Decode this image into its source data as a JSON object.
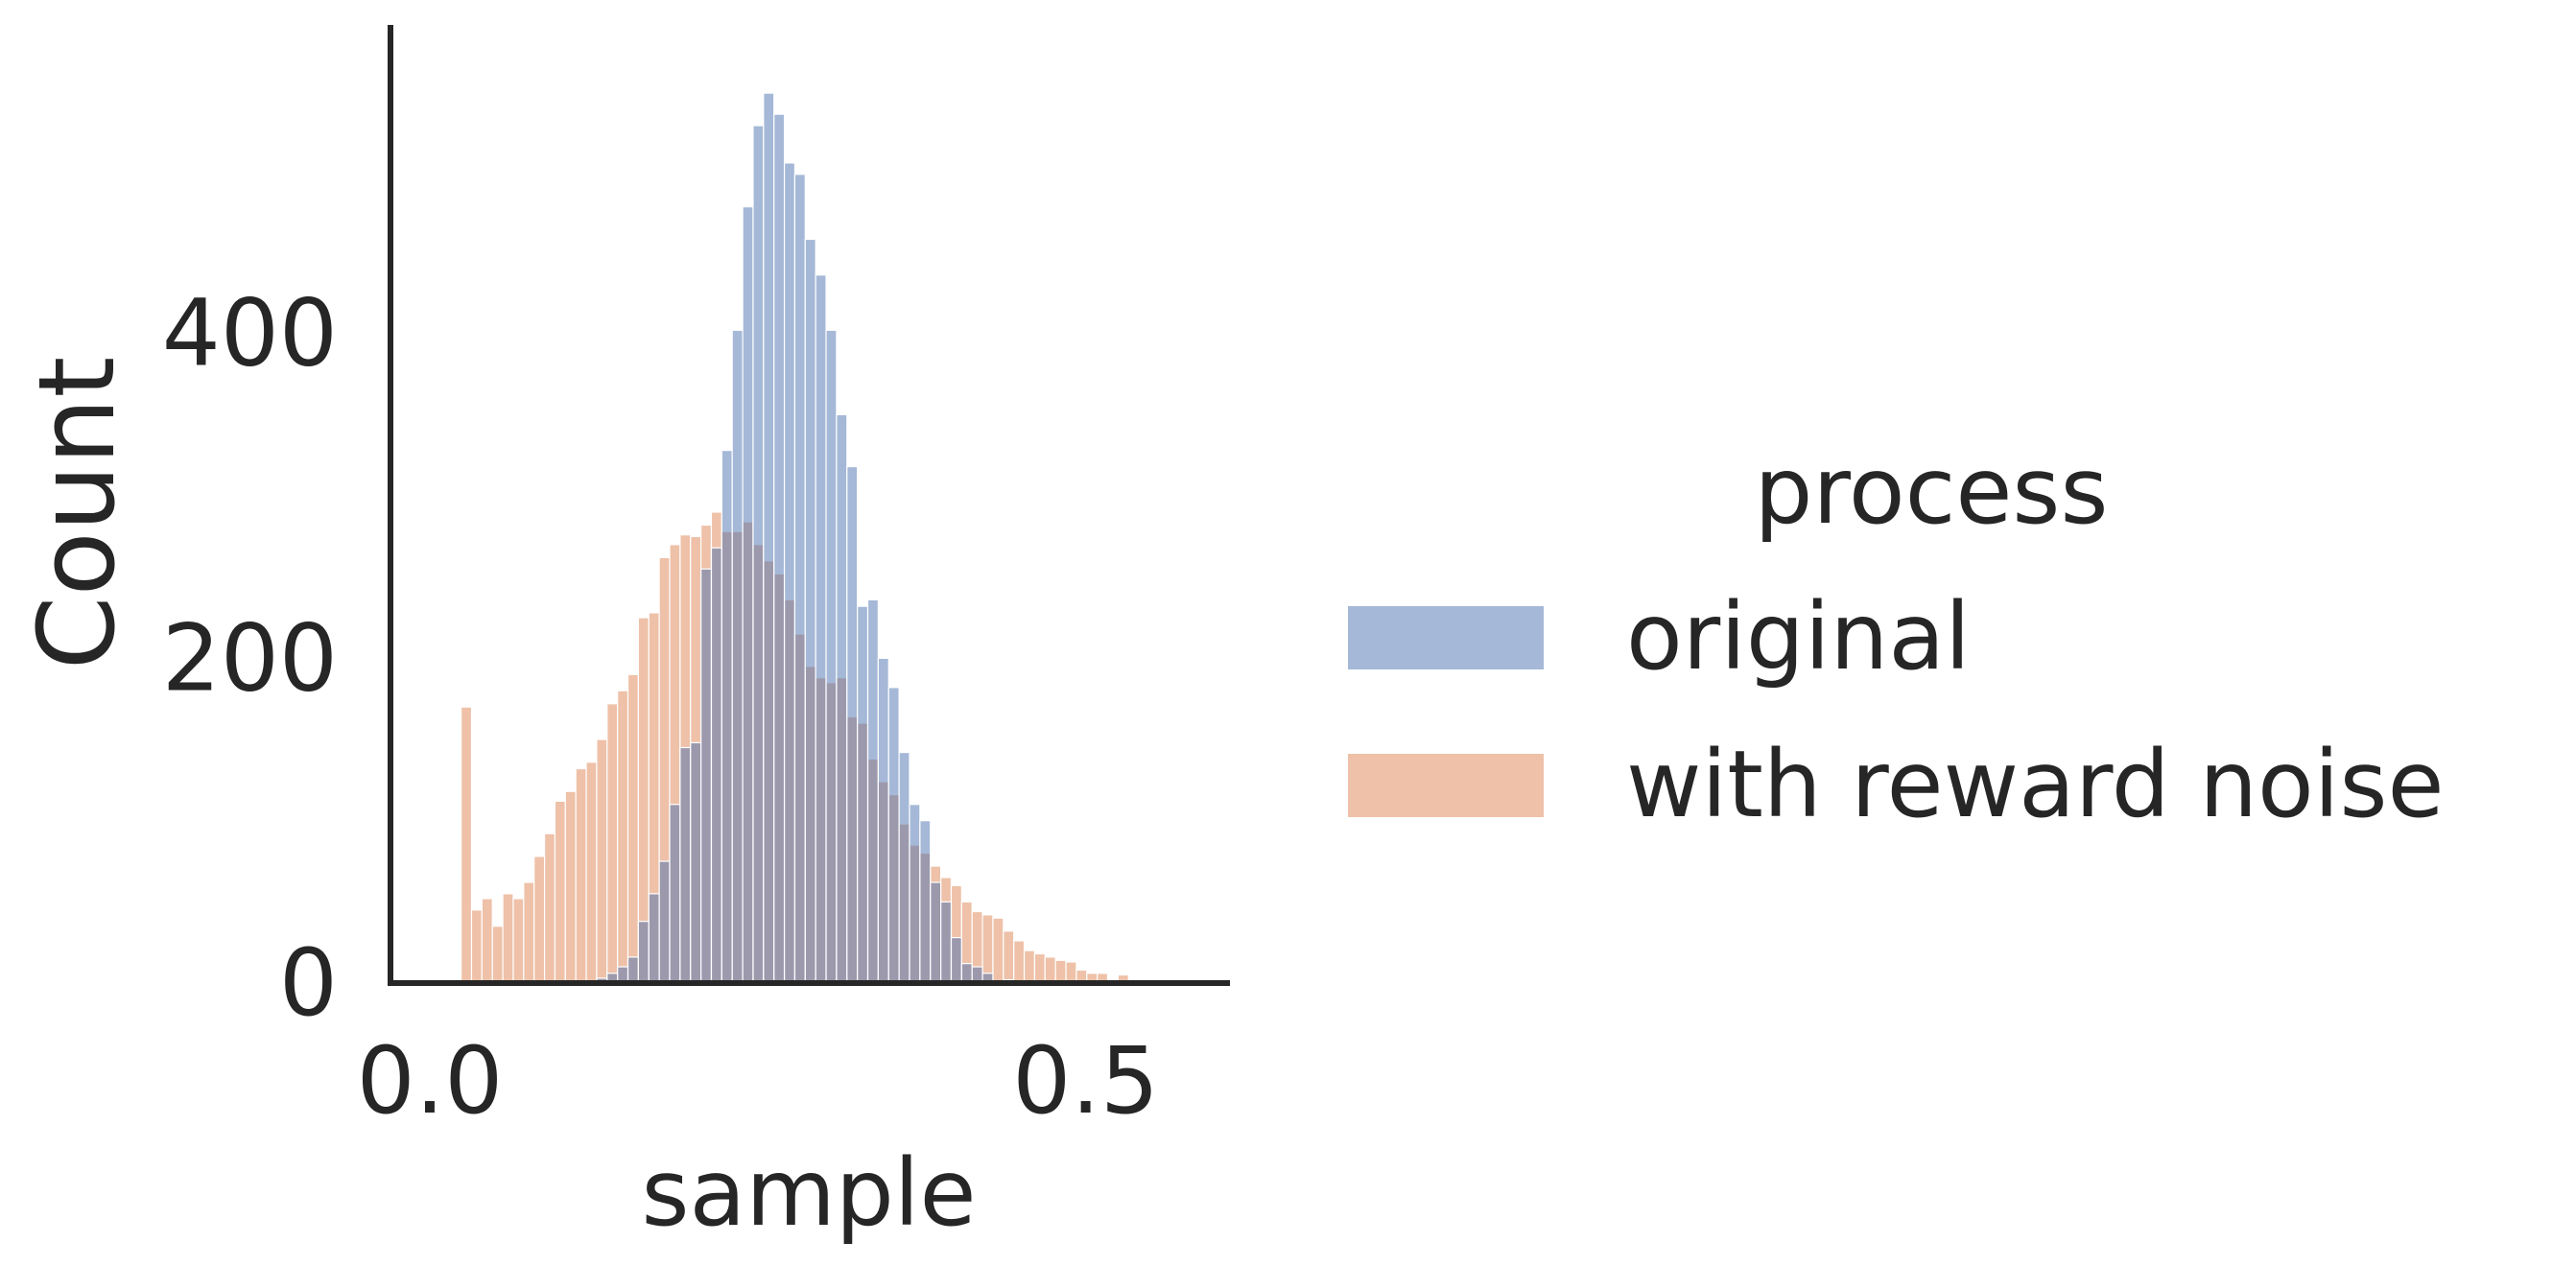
{
  "chart_data": {
    "type": "bar",
    "histogram": true,
    "xlabel": "sample",
    "ylabel": "Count",
    "xlim": [
      -0.03,
      0.61
    ],
    "ylim": [
      0,
      590
    ],
    "xticks": [
      0.0,
      0.5
    ],
    "xtick_labels": [
      "0.0",
      "0.5"
    ],
    "yticks": [
      0,
      200,
      400
    ],
    "ytick_labels": [
      "0",
      "200",
      "400"
    ],
    "grid": false,
    "legend_position": "right",
    "legend_title": "process",
    "bin_start": 0.0,
    "bin_width": 0.00795,
    "series": [
      {
        "name": "with reward noise",
        "color": "#dd8452",
        "counts": [
          0,
          0,
          0,
          170,
          45,
          52,
          35,
          55,
          52,
          62,
          78,
          92,
          112,
          118,
          132,
          136,
          150,
          172,
          180,
          190,
          225,
          228,
          262,
          270,
          276,
          275,
          282,
          290,
          278,
          278,
          284,
          270,
          260,
          252,
          236,
          215,
          195,
          188,
          185,
          188,
          164,
          160,
          138,
          124,
          116,
          98,
          85,
          80,
          72,
          65,
          60,
          50,
          44,
          42,
          40,
          32,
          26,
          20,
          18,
          16,
          14,
          13,
          8,
          6,
          6,
          0,
          5
        ]
      },
      {
        "name": "original",
        "color": "#4c72b0",
        "counts": [
          0,
          0,
          0,
          0,
          0,
          0,
          0,
          0,
          0,
          0,
          0,
          0,
          0,
          0,
          0,
          0,
          3,
          6,
          10,
          16,
          38,
          55,
          75,
          110,
          145,
          148,
          255,
          268,
          328,
          402,
          478,
          528,
          548,
          535,
          505,
          498,
          458,
          436,
          402,
          350,
          318,
          232,
          236,
          200,
          182,
          142,
          110,
          100,
          62,
          50,
          28,
          12,
          10,
          6,
          0,
          2
        ]
      }
    ],
    "draw_order": [
      "with reward noise",
      "original"
    ],
    "legend_order": [
      "original",
      "with reward noise"
    ]
  }
}
